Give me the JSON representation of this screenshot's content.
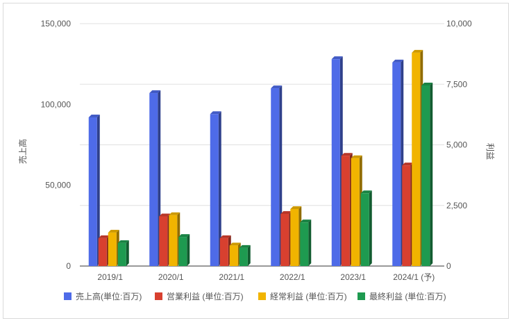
{
  "chart_data": {
    "type": "bar",
    "categories": [
      "2019/1",
      "2020/1",
      "2021/1",
      "2022/1",
      "2023/1",
      "2024/1 (予)"
    ],
    "y_left": {
      "label": "売上高",
      "range": [
        0,
        150000
      ],
      "ticks": [
        0,
        50000,
        100000,
        150000
      ],
      "tick_labels": [
        "0",
        "50,000",
        "100,000",
        "150,000"
      ]
    },
    "y_right": {
      "label": "利益",
      "range": [
        0,
        10000
      ],
      "ticks": [
        0,
        2500,
        5000,
        7500,
        10000
      ],
      "tick_labels": [
        "0",
        "2,500",
        "5,000",
        "7,500",
        "10,000"
      ]
    },
    "series": [
      {
        "name": "売上高(単位:百万)",
        "axis": "left",
        "color": "#4e6be8",
        "values": [
          92000,
          107000,
          94000,
          110000,
          128000,
          126000
        ]
      },
      {
        "name": "営業利益 (単位:百万)",
        "axis": "right",
        "color": "#d8402f",
        "values": [
          1150,
          2050,
          1150,
          2150,
          4550,
          4150
        ]
      },
      {
        "name": "経常利益 (単位:百万)",
        "axis": "right",
        "color": "#f1b400",
        "values": [
          1380,
          2100,
          850,
          2350,
          4450,
          8800
        ]
      },
      {
        "name": "最終利益 (単位:百万)",
        "axis": "right",
        "color": "#1e9a50",
        "values": [
          950,
          1200,
          750,
          1800,
          3000,
          7450
        ]
      }
    ],
    "grid": true,
    "legend_position": "bottom"
  }
}
